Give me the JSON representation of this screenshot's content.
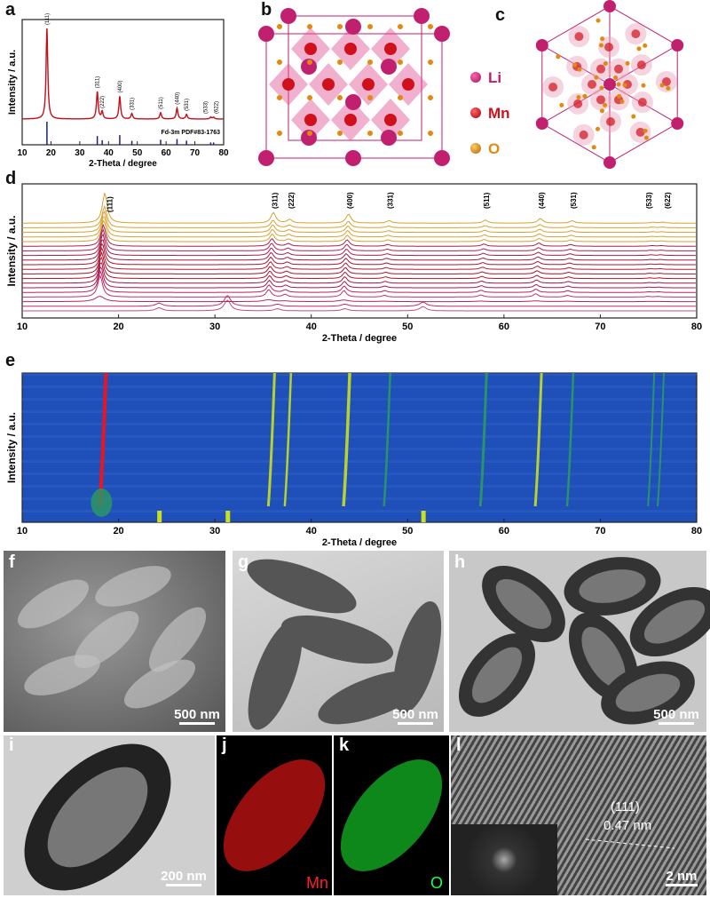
{
  "panels": {
    "a": "a",
    "b": "b",
    "c": "c",
    "d": "d",
    "e": "e",
    "f": "f",
    "g": "g",
    "h": "h",
    "i": "i",
    "j": "j",
    "k": "k",
    "l": "l"
  },
  "legend": {
    "li": "Li",
    "mn": "Mn",
    "o": "O",
    "colors": {
      "li": "#c0206e",
      "mn": "#d0101a",
      "o": "#e08a10"
    }
  },
  "chart_data": [
    {
      "panel": "a",
      "type": "line",
      "xlabel": "2-Theta / degree",
      "ylabel": "Intensity / a.u.",
      "xlim": [
        10,
        80
      ],
      "xticks": [
        "10",
        "20",
        "30",
        "40",
        "50",
        "60",
        "70",
        "80"
      ],
      "reference_label": "Fd-3m PDF#83-1763",
      "peaks": [
        {
          "x": 18.6,
          "h": 1.0,
          "label": "(111)"
        },
        {
          "x": 36.1,
          "h": 0.3,
          "label": "(311)"
        },
        {
          "x": 37.8,
          "h": 0.08,
          "label": "(222)"
        },
        {
          "x": 43.9,
          "h": 0.25,
          "label": "(400)"
        },
        {
          "x": 48.1,
          "h": 0.06,
          "label": "(331)"
        },
        {
          "x": 58.1,
          "h": 0.07,
          "label": "(511)"
        },
        {
          "x": 63.8,
          "h": 0.12,
          "label": "(440)"
        },
        {
          "x": 67.1,
          "h": 0.05,
          "label": "(531)"
        },
        {
          "x": 75.5,
          "h": 0.02,
          "label": "(533)"
        },
        {
          "x": 76.5,
          "h": 0.02,
          "label": "(622)"
        }
      ],
      "reference_lines": [
        {
          "x": 18.6,
          "h": 1.0
        },
        {
          "x": 36.1,
          "h": 0.38
        },
        {
          "x": 37.8,
          "h": 0.2
        },
        {
          "x": 43.9,
          "h": 0.42
        },
        {
          "x": 48.1,
          "h": 0.17
        },
        {
          "x": 58.1,
          "h": 0.22
        },
        {
          "x": 63.8,
          "h": 0.25
        },
        {
          "x": 67.1,
          "h": 0.18
        },
        {
          "x": 75.5,
          "h": 0.1
        },
        {
          "x": 76.5,
          "h": 0.1
        }
      ],
      "colors": {
        "pattern": "#c0101a",
        "reference": "#1a2370"
      }
    },
    {
      "panel": "d",
      "type": "line",
      "xlabel": "2-Theta / degree",
      "ylabel": "Intensity / a.u.",
      "xlim": [
        10,
        80
      ],
      "xticks": [
        "10",
        "20",
        "30",
        "40",
        "50",
        "60",
        "70",
        "80"
      ],
      "peak_labels": [
        {
          "x": 18.6,
          "label": "(111)"
        },
        {
          "x": 36.1,
          "label": "(311)"
        },
        {
          "x": 37.8,
          "label": "(222)"
        },
        {
          "x": 43.9,
          "label": "(400)"
        },
        {
          "x": 48.1,
          "label": "(331)"
        },
        {
          "x": 58.1,
          "label": "(511)"
        },
        {
          "x": 63.8,
          "label": "(440)"
        },
        {
          "x": 67.1,
          "label": "(531)"
        },
        {
          "x": 75.5,
          "label": "(533)"
        },
        {
          "x": 76.5,
          "label": "(622)"
        }
      ],
      "trace_colors": [
        "#c0507a",
        "#c02a70",
        "#b02868",
        "#c0306e",
        "#b82060",
        "#a8184e",
        "#a01545",
        "#b01530",
        "#a8102a",
        "#b81a30",
        "#a81535",
        "#a01a40",
        "#a8204a",
        "#b01f50",
        "#a8204a",
        "#d8a030",
        "#d8a030",
        "#d8a030",
        "#d8a030",
        "#d8a030"
      ]
    },
    {
      "panel": "e",
      "type": "heatmap",
      "xlabel": "2-Theta / degree",
      "ylabel": "Intensity / a.u.",
      "xlim": [
        10,
        80
      ],
      "xticks": [
        "10",
        "20",
        "30",
        "40",
        "50",
        "60",
        "70",
        "80"
      ],
      "colormap": [
        "#1f4fb8",
        "#2a9a60",
        "#c8e020",
        "#ff1010"
      ]
    }
  ],
  "micrographs": {
    "f": "500 nm",
    "g": "500 nm",
    "h": "500 nm",
    "i": "200 nm",
    "l": "2 nm"
  },
  "maps": {
    "j": "Mn",
    "k": "O"
  },
  "hrtem": {
    "plane": "(111)",
    "spacing": "0.47 nm"
  }
}
